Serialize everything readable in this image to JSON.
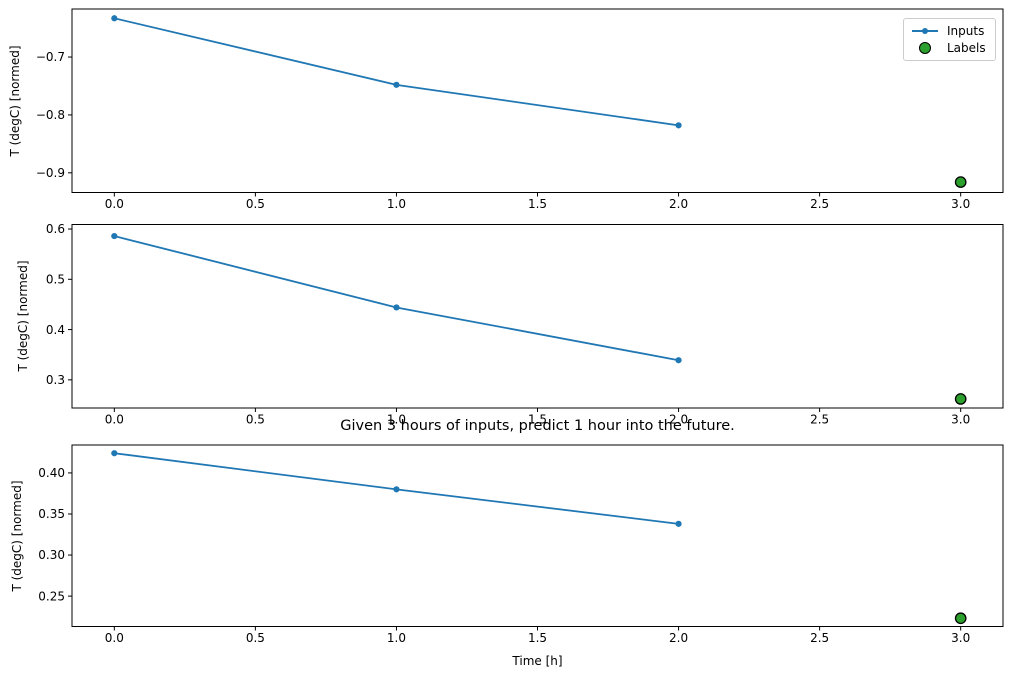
{
  "figure": {
    "title": "Given 3 hours of inputs, predict 1 hour into the future.",
    "xlabel": "Time [h]",
    "background_color": "#ffffff",
    "axis_color": "#000000"
  },
  "legend": {
    "position": "upper right",
    "border_color": "#cccccc",
    "items": [
      {
        "label": "Inputs",
        "marker": "line-with-dot",
        "color": "#1f77b4"
      },
      {
        "label": "Labels",
        "marker": "filled-circle",
        "color": "#2ca02c",
        "edge_color": "#000000"
      }
    ]
  },
  "chart_data": [
    {
      "type": "line",
      "subplot": "top",
      "ylabel": "T (degC) [normed]",
      "grid": false,
      "xlim": [
        -0.15,
        3.15
      ],
      "ylim": [
        -0.934,
        -0.617
      ],
      "xticks": [
        0,
        0.5,
        1,
        1.5,
        2,
        2.5,
        3
      ],
      "xtick_labels": [
        "0.0",
        "0.5",
        "1.0",
        "1.5",
        "2.0",
        "2.5",
        "3.0"
      ],
      "yticks": [
        -0.7,
        -0.8,
        -0.9
      ],
      "ytick_labels": [
        "−0.7",
        "−0.8",
        "−0.9"
      ],
      "series": [
        {
          "name": "Inputs",
          "style": "line+marker",
          "color": "#1f77b4",
          "x": [
            0,
            1,
            2
          ],
          "y": [
            -0.633,
            -0.748,
            -0.818
          ]
        },
        {
          "name": "Labels",
          "style": "scatter",
          "color": "#2ca02c",
          "edge_color": "#000000",
          "x": [
            3
          ],
          "y": [
            -0.916
          ]
        }
      ]
    },
    {
      "type": "line",
      "subplot": "middle",
      "ylabel": "T (degC) [normed]",
      "grid": false,
      "xlim": [
        -0.15,
        3.15
      ],
      "ylim": [
        0.244,
        0.609
      ],
      "xticks": [
        0,
        0.5,
        1,
        1.5,
        2,
        2.5,
        3
      ],
      "xtick_labels": [
        "0.0",
        "0.5",
        "1.0",
        "1.5",
        "2.0",
        "2.5",
        "3.0"
      ],
      "yticks": [
        0.6,
        0.5,
        0.4,
        0.3
      ],
      "ytick_labels": [
        "0.6",
        "0.5",
        "0.4",
        "0.3"
      ],
      "series": [
        {
          "name": "Inputs",
          "style": "line+marker",
          "color": "#1f77b4",
          "x": [
            0,
            1,
            2
          ],
          "y": [
            0.586,
            0.444,
            0.339
          ]
        },
        {
          "name": "Labels",
          "style": "scatter",
          "color": "#2ca02c",
          "edge_color": "#000000",
          "x": [
            3
          ],
          "y": [
            0.262
          ]
        }
      ]
    },
    {
      "type": "line",
      "subplot": "bottom",
      "ylabel": "T (degC) [normed]",
      "xlabel": "Time [h]",
      "grid": false,
      "xlim": [
        -0.15,
        3.15
      ],
      "ylim": [
        0.213,
        0.434
      ],
      "xticks": [
        0,
        0.5,
        1,
        1.5,
        2,
        2.5,
        3
      ],
      "xtick_labels": [
        "0.0",
        "0.5",
        "1.0",
        "1.5",
        "2.0",
        "2.5",
        "3.0"
      ],
      "yticks": [
        0.4,
        0.35,
        0.3,
        0.25
      ],
      "ytick_labels": [
        "0.40",
        "0.35",
        "0.30",
        "0.25"
      ],
      "series": [
        {
          "name": "Inputs",
          "style": "line+marker",
          "color": "#1f77b4",
          "x": [
            0,
            1,
            2
          ],
          "y": [
            0.424,
            0.38,
            0.338
          ]
        },
        {
          "name": "Labels",
          "style": "scatter",
          "color": "#2ca02c",
          "edge_color": "#000000",
          "x": [
            3
          ],
          "y": [
            0.223
          ]
        }
      ]
    }
  ]
}
